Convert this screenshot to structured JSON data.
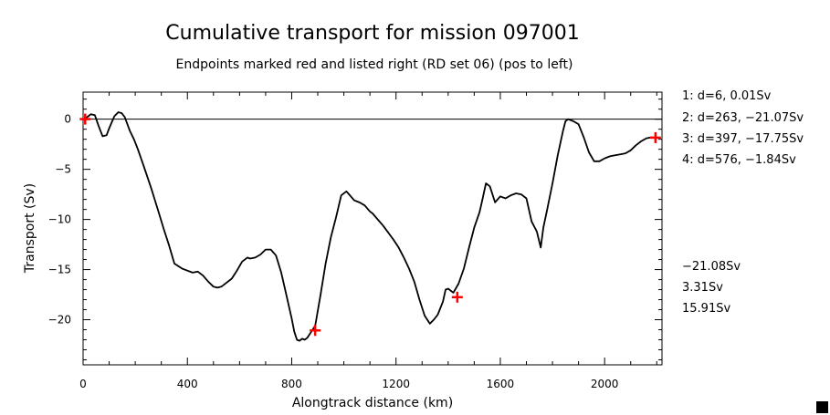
{
  "chart_data": {
    "type": "line",
    "title": "Cumulative transport for mission 097001",
    "subtitle": "Endpoints marked red and listed right (RD set 06) (pos to left)",
    "xlabel": "Alongtrack distance (km)",
    "ylabel": "Transport (Sv)",
    "xlim": [
      0,
      2220
    ],
    "ylim": [
      -24.5,
      2.7
    ],
    "x_ticks": [
      0,
      400,
      800,
      1200,
      1600,
      2000
    ],
    "y_ticks": [
      0,
      -5,
      -10,
      -15,
      -20
    ],
    "x_tick_labels": [
      "0",
      "400",
      "800",
      "1200",
      "1600",
      "2000"
    ],
    "y_tick_labels": [
      "0",
      "−5",
      "−10",
      "−15",
      "−20"
    ],
    "zero_line": true,
    "grid": false,
    "line_color": "#000000",
    "marker_color": "#ff0000",
    "series": [
      {
        "x": [
          5,
          15,
          30,
          45,
          60,
          75,
          90,
          100,
          110,
          120,
          135,
          148,
          160,
          170,
          180,
          195,
          210,
          230,
          260,
          290,
          310,
          330,
          350,
          380,
          400,
          420,
          440,
          460,
          480,
          500,
          515,
          530,
          550,
          570,
          590,
          610,
          630,
          640,
          660,
          680,
          700,
          720,
          740,
          760,
          780,
          800,
          810,
          820,
          830,
          840,
          850,
          860,
          870,
          890,
          910,
          930,
          950,
          970,
          990,
          1010,
          1020,
          1040,
          1060,
          1080,
          1100,
          1110,
          1130,
          1150,
          1170,
          1190,
          1210,
          1230,
          1250,
          1270,
          1290,
          1310,
          1330,
          1345,
          1360,
          1380,
          1390,
          1400,
          1420,
          1440,
          1460,
          1480,
          1500,
          1520,
          1530,
          1545,
          1560,
          1580,
          1600,
          1620,
          1640,
          1660,
          1680,
          1700,
          1720,
          1740,
          1755,
          1765,
          1780,
          1800,
          1820,
          1840,
          1850,
          1860,
          1880,
          1900,
          1920,
          1940,
          1960,
          1980,
          2000,
          2020,
          2040,
          2060,
          2080,
          2100,
          2120,
          2140,
          2160,
          2180,
          2190
        ],
        "y": [
          0.0,
          0.2,
          0.5,
          0.4,
          -0.7,
          -1.7,
          -1.6,
          -0.9,
          -0.3,
          0.3,
          0.7,
          0.6,
          0.2,
          -0.5,
          -1.2,
          -2.0,
          -3.0,
          -4.5,
          -6.8,
          -9.3,
          -11.0,
          -12.6,
          -14.4,
          -14.9,
          -15.1,
          -15.3,
          -15.2,
          -15.6,
          -16.2,
          -16.7,
          -16.8,
          -16.7,
          -16.3,
          -15.9,
          -15.1,
          -14.2,
          -13.8,
          -13.9,
          -13.8,
          -13.5,
          -13.0,
          -13.0,
          -13.6,
          -15.3,
          -17.6,
          -19.9,
          -21.2,
          -22.0,
          -22.1,
          -21.9,
          -22.0,
          -21.8,
          -21.4,
          -20.6,
          -17.6,
          -14.4,
          -11.8,
          -9.8,
          -7.6,
          -7.2,
          -7.5,
          -8.1,
          -8.3,
          -8.6,
          -9.2,
          -9.4,
          -10.0,
          -10.6,
          -11.3,
          -12.0,
          -12.8,
          -13.8,
          -14.9,
          -16.2,
          -18.0,
          -19.6,
          -20.4,
          -20.0,
          -19.5,
          -18.2,
          -17.0,
          -16.9,
          -17.3,
          -16.4,
          -14.9,
          -12.8,
          -10.8,
          -9.3,
          -8.2,
          -6.4,
          -6.7,
          -8.3,
          -7.7,
          -7.9,
          -7.6,
          -7.4,
          -7.5,
          -7.9,
          -10.2,
          -11.2,
          -12.8,
          -10.8,
          -9.0,
          -6.4,
          -3.6,
          -1.2,
          -0.2,
          0.0,
          -0.2,
          -0.5,
          -1.8,
          -3.3,
          -4.2,
          -4.2,
          -3.9,
          -3.7,
          -3.6,
          -3.5,
          -3.4,
          -3.1,
          -2.6,
          -2.2,
          -1.9,
          -1.8,
          -1.84
        ]
      }
    ],
    "endpoints": [
      {
        "x": 8,
        "y": 0.01
      },
      {
        "x": 890,
        "y": -21.07
      },
      {
        "x": 1435,
        "y": -17.75
      },
      {
        "x": 2195,
        "y": -1.84
      }
    ]
  },
  "legend": {
    "endpoint_lines": [
      "1: d=6, 0.01Sv",
      "2: d=263, −21.07Sv",
      "3: d=397, −17.75Sv",
      "4: d=576, −1.84Sv"
    ],
    "totals": [
      "−21.08Sv",
      "3.31Sv",
      "15.91Sv"
    ]
  },
  "corner_marker_color": "#000000"
}
